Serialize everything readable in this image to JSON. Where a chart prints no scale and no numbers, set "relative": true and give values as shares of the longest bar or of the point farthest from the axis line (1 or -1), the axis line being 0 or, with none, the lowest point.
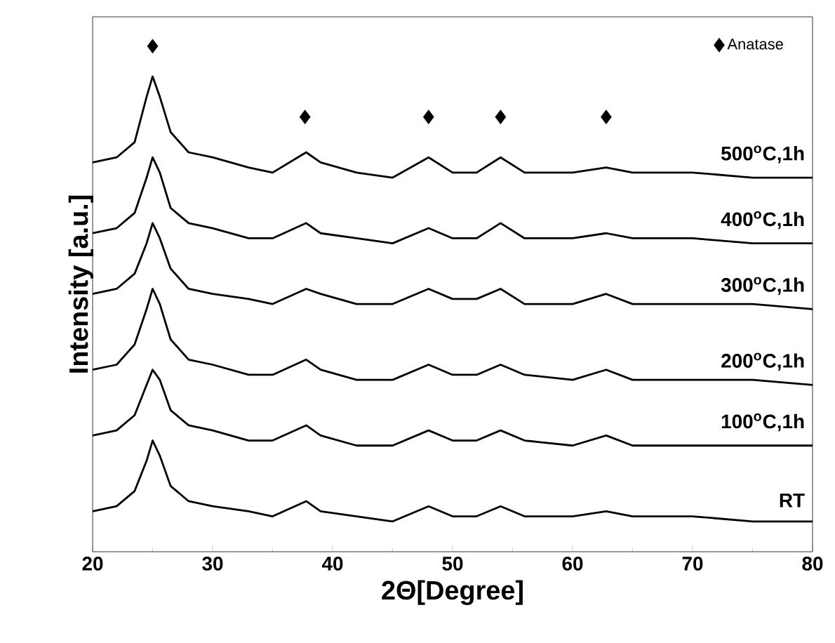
{
  "chart_data": {
    "type": "line",
    "relative": true,
    "xlabel": "2Θ[Degree]",
    "ylabel": "Intensity [a.u.]",
    "xlim": [
      20,
      80
    ],
    "xticks": [
      20,
      30,
      40,
      50,
      60,
      70,
      80
    ],
    "legend": "top right",
    "x": [
      20,
      22,
      23.5,
      24.5,
      25,
      25.6,
      26.5,
      28,
      30,
      33,
      35,
      37.8,
      39,
      42,
      45,
      48,
      50,
      52,
      54,
      56,
      60,
      62.8,
      65,
      70,
      75,
      80
    ],
    "series": [
      {
        "name": "RT",
        "color": "#000000",
        "values": [
          0.08,
          0.09,
          0.12,
          0.18,
          0.22,
          0.19,
          0.13,
          0.1,
          0.09,
          0.08,
          0.07,
          0.1,
          0.08,
          0.07,
          0.06,
          0.09,
          0.07,
          0.07,
          0.09,
          0.07,
          0.07,
          0.08,
          0.07,
          0.07,
          0.06,
          0.06
        ]
      },
      {
        "name": "100$^{o}$C,1h",
        "color": "#000000",
        "values": [
          0.23,
          0.24,
          0.27,
          0.33,
          0.36,
          0.34,
          0.28,
          0.25,
          0.24,
          0.22,
          0.22,
          0.25,
          0.23,
          0.21,
          0.21,
          0.24,
          0.22,
          0.22,
          0.24,
          0.22,
          0.21,
          0.23,
          0.21,
          0.21,
          0.21,
          0.21
        ]
      },
      {
        "name": "200$^{o}$C,1h",
        "color": "#000000",
        "values": [
          0.36,
          0.37,
          0.41,
          0.48,
          0.52,
          0.49,
          0.42,
          0.38,
          0.37,
          0.35,
          0.35,
          0.38,
          0.36,
          0.34,
          0.34,
          0.37,
          0.35,
          0.35,
          0.37,
          0.35,
          0.34,
          0.36,
          0.34,
          0.34,
          0.34,
          0.33
        ]
      },
      {
        "name": "300$^{o}$C,1h",
        "color": "#000000",
        "values": [
          0.51,
          0.52,
          0.55,
          0.61,
          0.65,
          0.62,
          0.56,
          0.52,
          0.51,
          0.5,
          0.49,
          0.52,
          0.51,
          0.49,
          0.49,
          0.52,
          0.5,
          0.5,
          0.52,
          0.49,
          0.49,
          0.51,
          0.49,
          0.49,
          0.49,
          0.48
        ]
      },
      {
        "name": "400$^{o}$C,1h",
        "color": "#000000",
        "values": [
          0.63,
          0.64,
          0.67,
          0.74,
          0.78,
          0.75,
          0.68,
          0.65,
          0.64,
          0.62,
          0.62,
          0.65,
          0.63,
          0.62,
          0.61,
          0.64,
          0.62,
          0.62,
          0.65,
          0.62,
          0.62,
          0.63,
          0.62,
          0.62,
          0.61,
          0.61
        ]
      },
      {
        "name": "500$^{o}$C,1h",
        "color": "#000000",
        "values": [
          0.77,
          0.78,
          0.81,
          0.9,
          0.94,
          0.9,
          0.83,
          0.79,
          0.78,
          0.76,
          0.75,
          0.79,
          0.77,
          0.75,
          0.74,
          0.78,
          0.75,
          0.75,
          0.78,
          0.75,
          0.75,
          0.76,
          0.75,
          0.75,
          0.74,
          0.74
        ]
      },
      {
        "name": "Anatase",
        "type": "scatter",
        "marker": "diamond",
        "color": "#000000",
        "x": [
          25,
          37.7,
          48,
          54,
          62.8
        ],
        "values": [
          1.0,
          0.86,
          0.86,
          0.86,
          0.86
        ]
      }
    ]
  }
}
